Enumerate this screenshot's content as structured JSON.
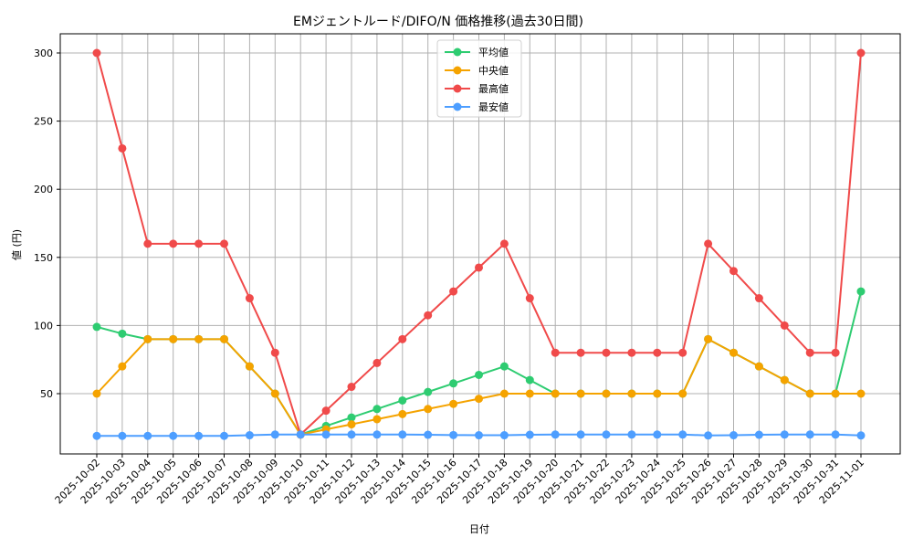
{
  "chart_data": {
    "type": "line",
    "title": "EMジェントルード/DIFO/N 価格推移(過去30日間)",
    "xlabel": "日付",
    "ylabel": "値 (円)",
    "ylim": [
      10.5,
      314.5
    ],
    "yticks": [
      50,
      100,
      150,
      200,
      250,
      300
    ],
    "grid": true,
    "legend_position": "upper center",
    "categories": [
      "2025-10-02",
      "2025-10-03",
      "2025-10-04",
      "2025-10-05",
      "2025-10-06",
      "2025-10-07",
      "2025-10-08",
      "2025-10-09",
      "2025-10-10",
      "2025-10-11",
      "2025-10-12",
      "2025-10-13",
      "2025-10-14",
      "2025-10-15",
      "2025-10-16",
      "2025-10-17",
      "2025-10-18",
      "2025-10-19",
      "2025-10-20",
      "2025-10-21",
      "2025-10-22",
      "2025-10-23",
      "2025-10-24",
      "2025-10-25",
      "2025-10-26",
      "2025-10-27",
      "2025-10-28",
      "2025-10-29",
      "2025-10-30",
      "2025-10-31",
      "2025-11-01"
    ],
    "series": [
      {
        "name": "平均値",
        "color": "#2ecc71",
        "values": [
          99,
          94,
          90,
          90,
          90,
          90,
          70,
          50,
          20,
          26.25,
          32.5,
          38.75,
          45,
          51.25,
          57.5,
          63.75,
          70,
          60,
          50,
          50,
          50,
          50,
          50,
          50,
          90,
          80,
          70,
          60,
          50,
          50,
          125
        ]
      },
      {
        "name": "中央値",
        "color": "#f5a300",
        "values": [
          50,
          70,
          90,
          90,
          90,
          90,
          70,
          50,
          20,
          23.75,
          27.5,
          31.25,
          35,
          38.75,
          42.5,
          46.25,
          50,
          50,
          50,
          50,
          50,
          50,
          50,
          50,
          90,
          80,
          70,
          60,
          50,
          50,
          50
        ]
      },
      {
        "name": "最高値",
        "color": "#f04a4a",
        "values": [
          300,
          230,
          160,
          160,
          160,
          160,
          120,
          80,
          20,
          37.5,
          55,
          72.5,
          90,
          107.5,
          125,
          142.5,
          160,
          120,
          80,
          80,
          80,
          80,
          80,
          80,
          160,
          140,
          120,
          100,
          80,
          80,
          300
        ]
      },
      {
        "name": "最安値",
        "color": "#4d9eff",
        "values": [
          19,
          19,
          19,
          19,
          19,
          19,
          19.5,
          20,
          20,
          20,
          20,
          20,
          20,
          19.8,
          19.6,
          19.5,
          19.5,
          19.8,
          20,
          20,
          20,
          20,
          20,
          20,
          19.3,
          19.5,
          19.8,
          20,
          20,
          20,
          19.3
        ]
      }
    ]
  }
}
